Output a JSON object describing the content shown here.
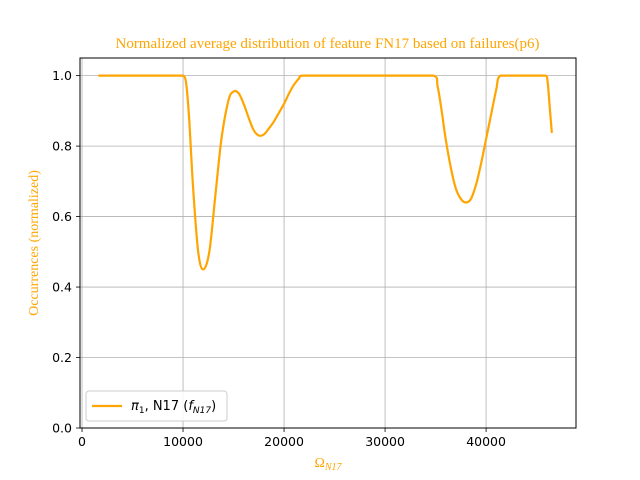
{
  "chart_data": {
    "type": "line",
    "title": "Normalized average distribution of feature FN17 based on failures(p6)",
    "xlabel": "Ω",
    "xlabel_sub": "N17",
    "ylabel": "Occurrences (normalized)",
    "xlim": [
      -200,
      48900
    ],
    "ylim": [
      0,
      1.05
    ],
    "xticks": [
      0,
      10000,
      20000,
      30000,
      40000
    ],
    "xtick_labels": [
      "0",
      "10000",
      "20000",
      "30000",
      "40000"
    ],
    "yticks": [
      0.0,
      0.2,
      0.4,
      0.6,
      0.8,
      1.0
    ],
    "ytick_labels": [
      "0.0",
      "0.2",
      "0.4",
      "0.6",
      "0.8",
      "1.0"
    ],
    "grid": true,
    "legend_position": "lower left",
    "colors": {
      "series": "#FFA500",
      "title": "#FFA500",
      "grid": "#b0b0b0"
    },
    "series": [
      {
        "name": "π1, N17 (fN17)",
        "legend_parts": {
          "pi": "π",
          "pi_sub": "1",
          "mid": ", N17 (",
          "f": "f",
          "f_sub": "N17",
          "end": ")"
        },
        "x": [
          1700,
          4000,
          7000,
          9500,
          10000,
          10300,
          10600,
          11000,
          11500,
          12000,
          12600,
          13200,
          13800,
          14500,
          15000,
          15500,
          16000,
          16500,
          17000,
          17500,
          18000,
          18500,
          19000,
          19500,
          20000,
          20500,
          21000,
          21500,
          21800,
          24000,
          28000,
          32000,
          34800,
          35200,
          35600,
          36000,
          36500,
          37000,
          37500,
          38000,
          38500,
          39000,
          39500,
          40000,
          40500,
          41000,
          41400,
          43000,
          45000,
          45900,
          46100,
          46300,
          46500
        ],
        "y": [
          1.0,
          1.0,
          1.0,
          1.0,
          1.0,
          0.98,
          0.88,
          0.68,
          0.5,
          0.45,
          0.5,
          0.66,
          0.82,
          0.93,
          0.955,
          0.95,
          0.92,
          0.88,
          0.845,
          0.83,
          0.833,
          0.85,
          0.87,
          0.895,
          0.92,
          0.95,
          0.975,
          0.993,
          1.0,
          1.0,
          1.0,
          1.0,
          1.0,
          0.97,
          0.9,
          0.82,
          0.74,
          0.68,
          0.65,
          0.64,
          0.65,
          0.69,
          0.75,
          0.82,
          0.89,
          0.96,
          1.0,
          1.0,
          1.0,
          1.0,
          0.98,
          0.91,
          0.84
        ]
      }
    ]
  }
}
